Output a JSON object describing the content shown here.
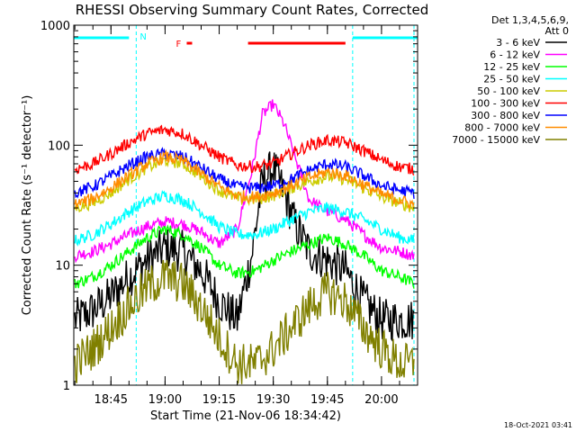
{
  "chart_data": {
    "type": "line",
    "title": "RHESSI Observing Summary Count Rates, Corrected",
    "xlabel": "Start Time (21-Nov-06 18:34:42)",
    "ylabel": "Corrected Count Rate (s⁻¹ detector⁻¹)",
    "y_scale": "log",
    "ylim": [
      1,
      1000
    ],
    "xlim": [
      "18:34:42",
      "20:10:00"
    ],
    "x_ticks": [
      "18:45",
      "19:00",
      "19:15",
      "19:30",
      "19:45",
      "20:00"
    ],
    "y_ticks": [
      "1",
      "10",
      "100",
      "1000"
    ],
    "legend_header": [
      "Det 1,3,4,5,6,9,",
      "Att 0"
    ],
    "legend_placement": "right",
    "timestamp": "18-Oct-2021 03:41",
    "flags": {
      "night_label": "N",
      "night_color": "#00ffff",
      "night_intervals": [
        [
          "18:34:42",
          "18:50:00"
        ],
        [
          "19:52:00",
          "20:10:00"
        ]
      ],
      "night_edges": [
        "18:52:00",
        "19:52:00",
        "20:09:00"
      ],
      "flare_label": "F",
      "flare_color": "#ff0000",
      "flare_intervals": [
        [
          "19:06:00",
          "19:07:30"
        ],
        [
          "19:23:00",
          "19:50:00"
        ]
      ]
    },
    "series": [
      {
        "name": "3 - 6 keV",
        "color": "#000000",
        "x": [
          "18:35",
          "18:40",
          "18:45",
          "18:50",
          "18:55",
          "19:00",
          "19:05",
          "19:10",
          "19:15",
          "19:20",
          "19:24",
          "19:27",
          "19:30",
          "19:33",
          "19:36",
          "19:40",
          "19:45",
          "19:50",
          "19:55",
          "20:00",
          "20:05",
          "20:09"
        ],
        "values": [
          3.5,
          4.2,
          5.5,
          8,
          11,
          14,
          13,
          9,
          5,
          3.5,
          12,
          50,
          65,
          40,
          22,
          13,
          11,
          9,
          5,
          3.5,
          3.5,
          3.5
        ]
      },
      {
        "name": "6 - 12 keV",
        "color": "#ff00ff",
        "x": [
          "18:35",
          "18:40",
          "18:45",
          "18:50",
          "18:55",
          "19:00",
          "19:05",
          "19:10",
          "19:15",
          "19:20",
          "19:24",
          "19:27",
          "19:30",
          "19:33",
          "19:36",
          "19:40",
          "19:45",
          "19:50",
          "19:55",
          "20:00",
          "20:05",
          "20:09"
        ],
        "values": [
          12,
          13,
          15,
          18,
          21,
          23,
          22,
          19,
          15,
          20,
          60,
          180,
          220,
          150,
          80,
          35,
          28,
          24,
          18,
          14,
          13,
          12
        ]
      },
      {
        "name": "12 - 25 keV",
        "color": "#00ff00",
        "x": [
          "18:35",
          "18:40",
          "18:45",
          "18:50",
          "18:55",
          "19:00",
          "19:05",
          "19:10",
          "19:15",
          "19:20",
          "19:25",
          "19:30",
          "19:35",
          "19:40",
          "19:45",
          "19:50",
          "19:55",
          "20:00",
          "20:05",
          "20:09"
        ],
        "values": [
          7,
          8,
          10,
          13,
          17,
          20,
          18,
          14,
          10,
          8.5,
          9,
          11,
          13,
          15,
          17,
          15,
          12,
          9,
          8,
          7
        ]
      },
      {
        "name": "25 - 50 keV",
        "color": "#00ffff",
        "x": [
          "18:35",
          "18:40",
          "18:45",
          "18:50",
          "18:55",
          "19:00",
          "19:05",
          "19:10",
          "19:15",
          "19:20",
          "19:25",
          "19:30",
          "19:35",
          "19:40",
          "19:45",
          "19:50",
          "19:55",
          "20:00",
          "20:05",
          "20:09"
        ],
        "values": [
          16,
          18,
          22,
          28,
          34,
          38,
          35,
          28,
          21,
          18,
          18,
          20,
          24,
          28,
          30,
          28,
          24,
          20,
          17,
          16
        ]
      },
      {
        "name": "50 - 100 keV",
        "color": "#cccc00",
        "x": [
          "18:35",
          "18:40",
          "18:45",
          "18:50",
          "18:55",
          "19:00",
          "19:05",
          "19:10",
          "19:15",
          "19:20",
          "19:25",
          "19:30",
          "19:35",
          "19:40",
          "19:45",
          "19:50",
          "19:55",
          "20:00",
          "20:05",
          "20:09"
        ],
        "values": [
          30,
          33,
          40,
          52,
          65,
          75,
          70,
          55,
          42,
          36,
          35,
          38,
          44,
          50,
          55,
          52,
          44,
          37,
          33,
          30
        ]
      },
      {
        "name": "100 - 300 keV",
        "color": "#ff0000",
        "x": [
          "18:35",
          "18:40",
          "18:45",
          "18:50",
          "18:55",
          "19:00",
          "19:05",
          "19:10",
          "19:15",
          "19:20",
          "19:25",
          "19:30",
          "19:35",
          "19:40",
          "19:45",
          "19:50",
          "19:55",
          "20:00",
          "20:05",
          "20:09"
        ],
        "values": [
          63,
          70,
          85,
          105,
          125,
          135,
          125,
          100,
          80,
          68,
          66,
          70,
          85,
          100,
          110,
          105,
          90,
          75,
          66,
          63
        ]
      },
      {
        "name": "300 - 800 keV",
        "color": "#0000ff",
        "x": [
          "18:35",
          "18:40",
          "18:45",
          "18:50",
          "18:55",
          "19:00",
          "19:05",
          "19:10",
          "19:15",
          "19:20",
          "19:25",
          "19:30",
          "19:35",
          "19:40",
          "19:45",
          "19:50",
          "19:55",
          "20:00",
          "20:05",
          "20:09"
        ],
        "values": [
          40,
          45,
          55,
          68,
          80,
          85,
          80,
          65,
          52,
          45,
          44,
          46,
          52,
          62,
          70,
          66,
          56,
          46,
          42,
          40
        ]
      },
      {
        "name": "800 - 7000 keV",
        "color": "#ff8c00",
        "x": [
          "18:35",
          "18:40",
          "18:45",
          "18:50",
          "18:55",
          "19:00",
          "19:05",
          "19:10",
          "19:15",
          "19:20",
          "19:25",
          "19:30",
          "19:35",
          "19:40",
          "19:45",
          "19:50",
          "19:55",
          "20:00",
          "20:05",
          "20:09"
        ],
        "values": [
          32,
          36,
          44,
          56,
          70,
          80,
          74,
          58,
          45,
          38,
          37,
          40,
          46,
          54,
          60,
          56,
          47,
          39,
          35,
          32
        ]
      },
      {
        "name": "7000 - 15000 keV",
        "color": "#808000",
        "x": [
          "18:35",
          "18:40",
          "18:45",
          "18:50",
          "18:55",
          "19:00",
          "19:05",
          "19:10",
          "19:15",
          "19:20",
          "19:25",
          "19:30",
          "19:35",
          "19:40",
          "19:45",
          "19:50",
          "19:55",
          "20:00",
          "20:05",
          "20:09"
        ],
        "values": [
          1.5,
          2,
          3,
          4.5,
          6.5,
          8,
          7,
          4.5,
          2.5,
          1.5,
          1.5,
          2,
          3,
          4.5,
          6,
          5,
          3,
          2,
          1.5,
          1.5
        ]
      }
    ]
  }
}
